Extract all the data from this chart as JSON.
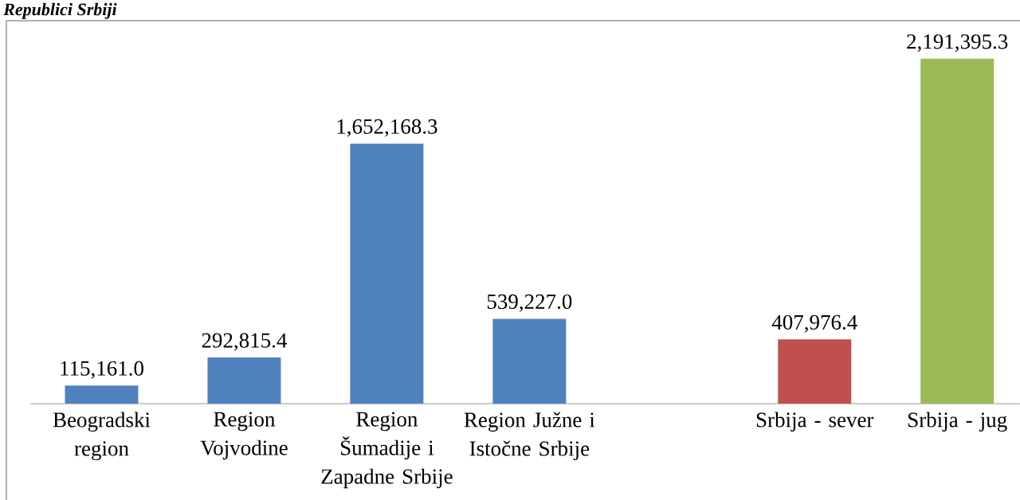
{
  "chart_data": {
    "type": "bar",
    "title": "Republici Srbiji",
    "categories": [
      "Beogradski region",
      "Region Vojvodine",
      "Region Šumadije i Zapadne Srbije",
      "Region Južne i Istočne Srbije",
      null,
      "Srbija - sever",
      "Srbija - jug"
    ],
    "values": [
      115161.0,
      292815.4,
      1652168.3,
      539227.0,
      null,
      407976.4,
      2191395.3
    ],
    "value_labels": [
      "115,161.0",
      "292,815.4",
      "1,652,168.3",
      "539,227.0",
      null,
      "407,976.4",
      "2,191,395.3"
    ],
    "colors": [
      "#4f81bd",
      "#4f81bd",
      "#4f81bd",
      "#4f81bd",
      null,
      "#c0504d",
      "#9bbb59"
    ]
  }
}
